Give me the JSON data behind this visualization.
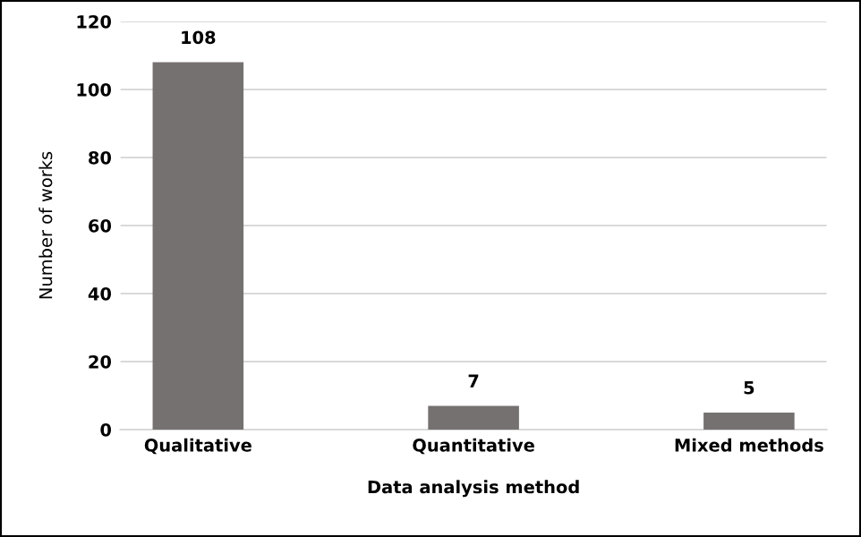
{
  "chart_data": {
    "type": "bar",
    "xlabel": "Data analysis method",
    "ylabel": "Number of works",
    "categories": [
      "Qualitative",
      "Quantitative",
      "Mixed methods"
    ],
    "values": [
      108,
      7,
      5
    ],
    "color": "#767171",
    "ylim": [
      0,
      120
    ],
    "yticks": [
      0,
      20,
      40,
      60,
      80,
      100,
      120
    ],
    "grid": "y",
    "data_labels": true
  }
}
